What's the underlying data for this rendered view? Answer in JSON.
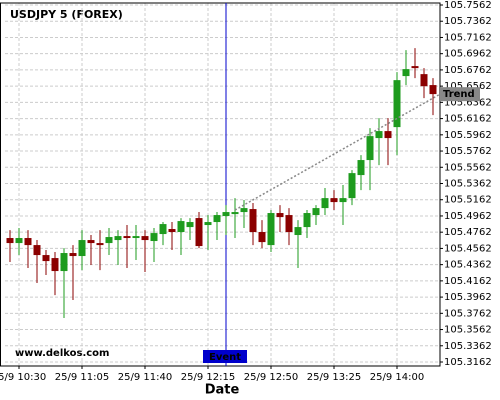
{
  "chart_data": {
    "type": "candlestick",
    "title": "USDJPY 5 (FOREX)",
    "x_label": "Date",
    "watermark": "www.delkos.com",
    "categories": [
      null,
      "25/9 10:30",
      null,
      null,
      null,
      null,
      null,
      null,
      "25/9 11:05",
      null,
      null,
      null,
      null,
      null,
      null,
      "25/9 11:40",
      null,
      null,
      null,
      null,
      null,
      null,
      "25/9 12:15",
      null,
      null,
      null,
      null,
      null,
      null,
      "25/9 12:50",
      null,
      null,
      null,
      null,
      null,
      null,
      "25/9 13:25",
      null,
      null,
      null,
      null,
      null,
      null,
      "25/9 14:00",
      null,
      null,
      null,
      null
    ],
    "open": [
      105.469,
      105.4628,
      105.469,
      105.4603,
      105.448,
      105.4443,
      105.4283,
      105.4505,
      105.4468,
      105.4665,
      105.4628,
      105.4628,
      105.4665,
      105.4714,
      105.469,
      105.4714,
      105.4653,
      105.4739,
      105.4801,
      105.4764,
      105.4825,
      105.4936,
      105.485,
      105.4887,
      105.4961,
      105.4985,
      105.501,
      105.5047,
      105.4764,
      105.4603,
      105.4998,
      105.4973,
      105.4727,
      105.4825,
      105.4973,
      105.5059,
      105.5182,
      105.5133,
      105.5182,
      105.5466,
      105.5651,
      105.5922,
      105.6008,
      105.6057,
      105.6686,
      105.6809,
      105.671,
      105.6575
    ],
    "high": [
      105.4788,
      105.4813,
      105.4788,
      105.4665,
      105.4542,
      105.4517,
      105.4566,
      105.4603,
      105.4788,
      105.4727,
      105.4788,
      105.4813,
      105.4788,
      105.485,
      105.485,
      105.4788,
      105.4813,
      105.4887,
      105.4887,
      105.4936,
      105.4936,
      105.501,
      105.4973,
      105.501,
      105.5096,
      105.5182,
      105.5158,
      105.5121,
      105.4911,
      105.5035,
      105.5096,
      105.5059,
      105.4911,
      105.5035,
      105.5096,
      105.5306,
      105.5281,
      105.5343,
      105.5527,
      105.5712,
      105.6045,
      105.6168,
      105.6168,
      105.6735,
      105.7006,
      105.703,
      105.6784,
      105.6661
    ],
    "low": [
      105.4394,
      105.448,
      105.432,
      105.4135,
      105.4234,
      105.3987,
      105.3704,
      105.3926,
      105.4295,
      105.4357,
      105.4295,
      105.448,
      105.4357,
      105.432,
      105.4419,
      105.4271,
      105.4394,
      105.4603,
      105.4542,
      105.448,
      105.4665,
      105.4566,
      105.4542,
      105.4665,
      105.4727,
      105.469,
      105.4813,
      105.4603,
      105.4566,
      105.4517,
      105.4764,
      105.4603,
      105.432,
      105.469,
      105.485,
      105.4973,
      105.5035,
      105.485,
      105.5096,
      105.5281,
      105.5281,
      105.5589,
      105.5589,
      105.5712,
      105.6575,
      105.6661,
      105.6414,
      105.6205
    ],
    "close": [
      105.4628,
      105.469,
      105.4603,
      105.448,
      105.4406,
      105.4283,
      105.4505,
      105.4468,
      105.4665,
      105.4628,
      105.4603,
      105.4702,
      105.4714,
      105.469,
      105.4714,
      105.4665,
      105.4751,
      105.4862,
      105.4764,
      105.4899,
      105.4887,
      105.4591,
      105.4887,
      105.4973,
      105.501,
      105.501,
      105.5059,
      105.4764,
      105.464,
      105.4998,
      105.4948,
      105.4764,
      105.4825,
      105.4998,
      105.5059,
      105.5182,
      105.5133,
      105.5182,
      105.549,
      105.5651,
      105.5946,
      105.6008,
      105.5922,
      105.6636,
      105.6772,
      105.6784,
      105.6562,
      105.6464
    ],
    "up_color": "#1e9b1e",
    "down_color": "#8b0000",
    "ylim": [
      105.3162,
      105.7562
    ],
    "yticks": [
      105.3162,
      105.3362,
      105.3562,
      105.3762,
      105.3962,
      105.4162,
      105.4362,
      105.4562,
      105.4762,
      105.4962,
      105.5162,
      105.5362,
      105.5562,
      105.5762,
      105.5962,
      105.6162,
      105.6362,
      105.6562,
      105.6762,
      105.6962,
      105.7162,
      105.7362,
      105.7562
    ],
    "grid": true,
    "event": {
      "label": "Event",
      "index": 24,
      "color": "#0000cc"
    },
    "trend": {
      "label": "Trend",
      "from_index": 25,
      "from_value": 105.5035,
      "to_index": 48,
      "to_value": 105.6477,
      "color": "#888888"
    }
  }
}
